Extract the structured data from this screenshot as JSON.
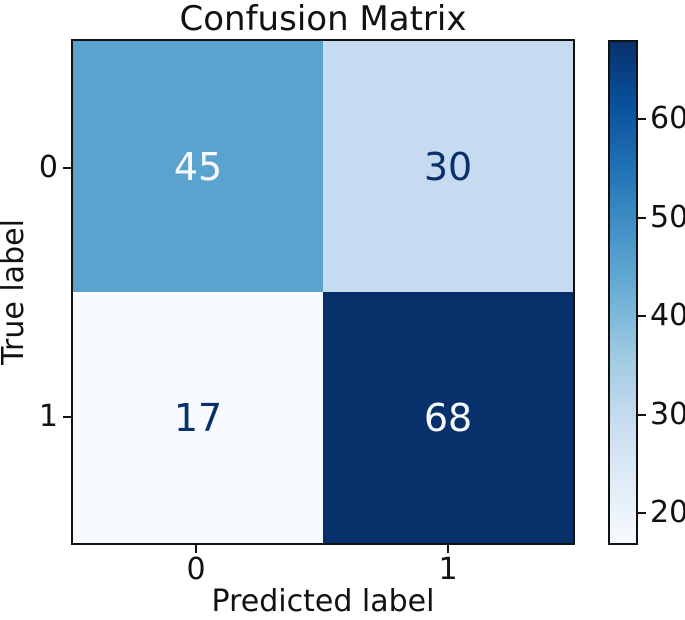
{
  "title": "Confusion Matrix",
  "chart_data": {
    "type": "heatmap",
    "title": "Confusion Matrix",
    "xlabel": "Predicted label",
    "ylabel": "True label",
    "x_tick_labels": [
      "0",
      "1"
    ],
    "y_tick_labels": [
      "0",
      "1"
    ],
    "matrix": [
      [
        45,
        30
      ],
      [
        17,
        68
      ]
    ],
    "colormap": "Blues",
    "vmin": 17,
    "vmax": 68,
    "colorbar_ticks": [
      20,
      30,
      40,
      50,
      60
    ],
    "cell_colors": [
      [
        "#5ba3cf",
        "#c6dbef"
      ],
      [
        "#f7fbff",
        "#08306b"
      ]
    ],
    "cell_text_colors": [
      [
        "#f7fbff",
        "#08306b"
      ],
      [
        "#08306b",
        "#f7fbff"
      ]
    ],
    "colorbar_gradient": [
      "#f7fbff",
      "#deebf7",
      "#c6dbef",
      "#9ecae1",
      "#6baed6",
      "#4292c6",
      "#2171b5",
      "#08519c",
      "#08306b"
    ],
    "axes_edge_color": "#111111",
    "legend_position": "right-colorbar",
    "grid": false
  }
}
